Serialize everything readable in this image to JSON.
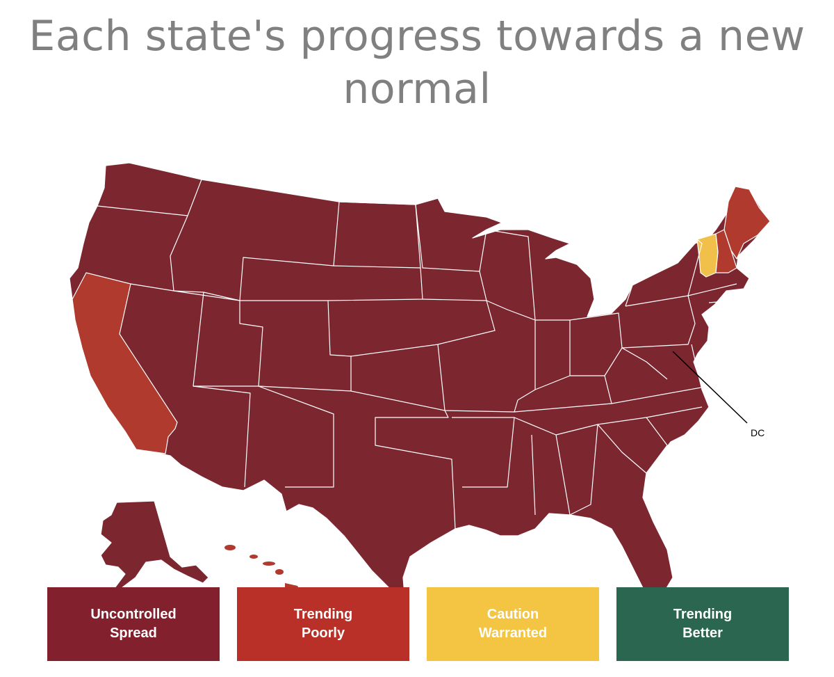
{
  "title": "Each state's progress towards a new normal",
  "annotation": {
    "label": "DC"
  },
  "colors": {
    "uncontrolled_spread": "#7c2630",
    "trending_poorly": "#b03a2e",
    "caution_warranted": "#f1c04a",
    "trending_better": "#2a6650",
    "uncontrolled_spread_legend": "#82202d",
    "trending_poorly_legend": "#b83027"
  },
  "legend": [
    {
      "label": "Uncontrolled\nSpread",
      "color": "#82202d"
    },
    {
      "label": "Trending\nPoorly",
      "color": "#b83027"
    },
    {
      "label": "Caution\nWarranted",
      "color": "#f3c542"
    },
    {
      "label": "Trending\nBetter",
      "color": "#2a6650"
    }
  ],
  "state_status": {
    "default": "uncontrolled_spread",
    "California": "trending_poorly",
    "Maine": "trending_poorly",
    "New Hampshire": "trending_poorly",
    "Vermont": "caution_warranted"
  }
}
